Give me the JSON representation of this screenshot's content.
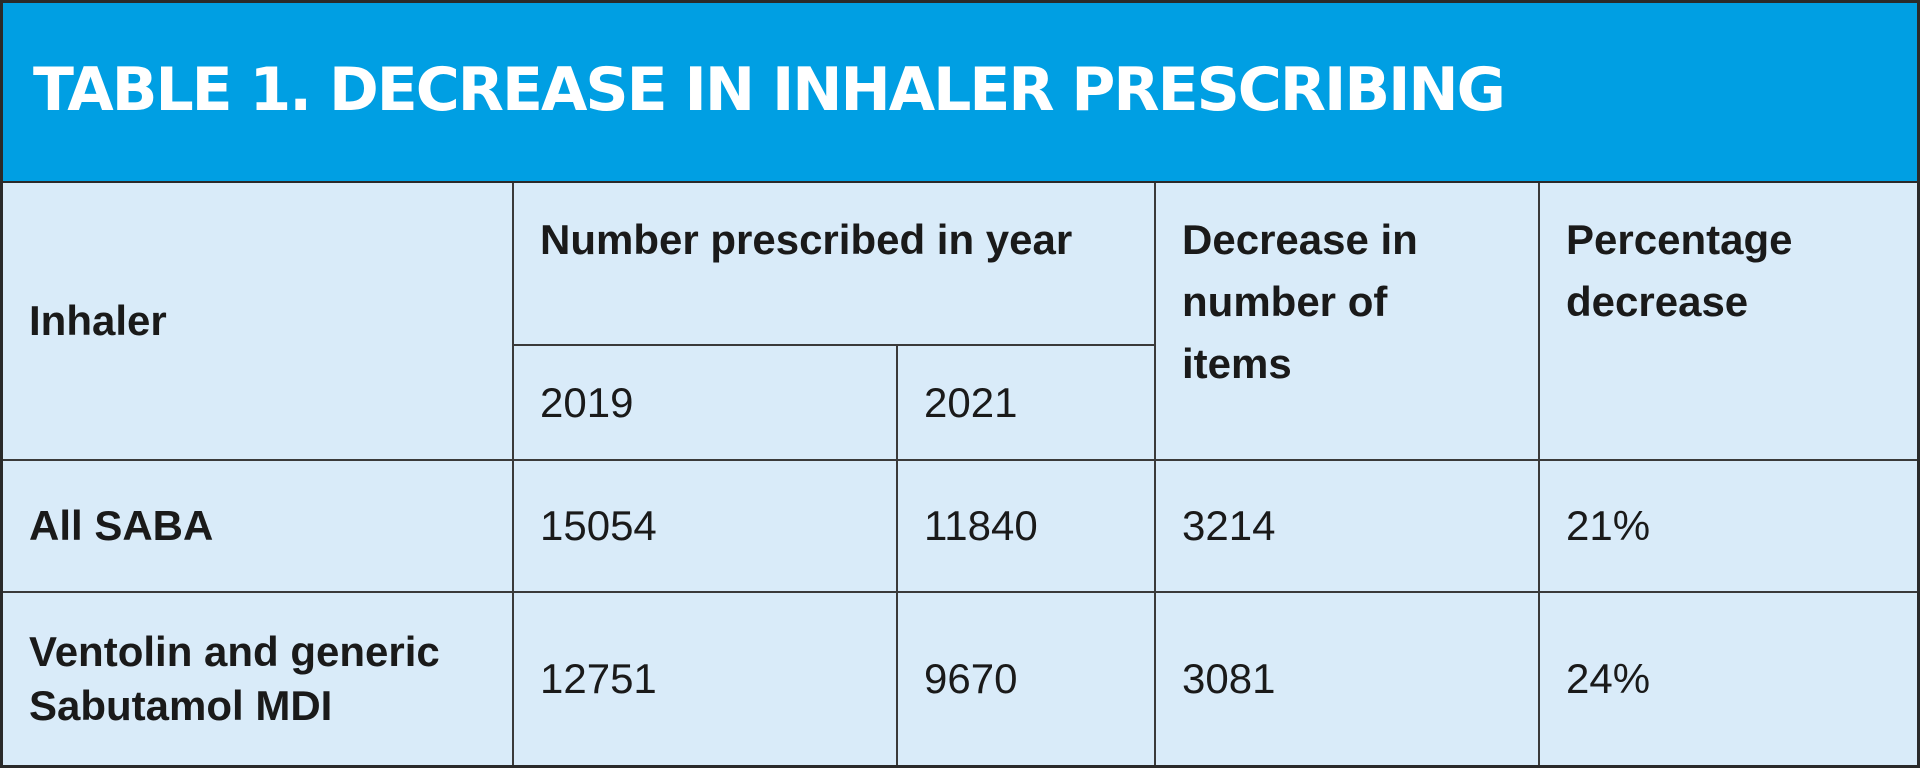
{
  "title": "TABLE 1. DECREASE IN INHALER PRESCRIBING",
  "header": {
    "inhaler": "Inhaler",
    "number_prescribed": "Number prescribed in year",
    "year_2019": "2019",
    "year_2021": "2021",
    "decrease_line1": "Decrease in",
    "decrease_line2": "number of",
    "decrease_line3": "items",
    "percentage_line1": "Percentage",
    "percentage_line2": "decrease"
  },
  "rows": [
    {
      "inhaler_line1": "All SABA",
      "inhaler_line2": "",
      "v2019": "15054",
      "v2021": "11840",
      "decrease": "3214",
      "percentage": "21%"
    },
    {
      "inhaler_line1": "Ventolin and generic",
      "inhaler_line2": "Sabutamol MDI",
      "v2019": "12751",
      "v2021": "9670",
      "decrease": "3081",
      "percentage": "24%"
    }
  ],
  "colors": {
    "title_bg": "#009fe3",
    "table_bg": "#d9ebf9",
    "title_text": "#ffffff",
    "border": "#3a3a3a"
  }
}
